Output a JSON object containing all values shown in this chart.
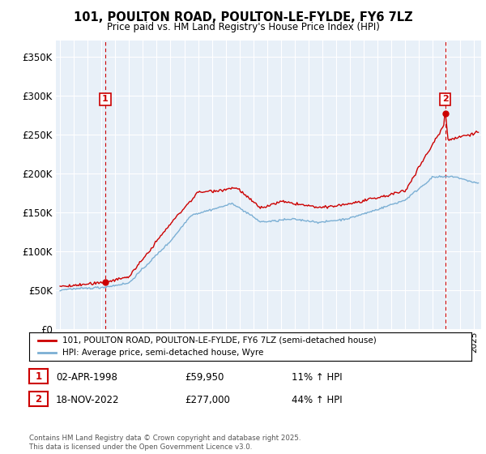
{
  "title": "101, POULTON ROAD, POULTON-LE-FYLDE, FY6 7LZ",
  "subtitle": "Price paid vs. HM Land Registry's House Price Index (HPI)",
  "ylabel_ticks": [
    "£0",
    "£50K",
    "£100K",
    "£150K",
    "£200K",
    "£250K",
    "£300K",
    "£350K"
  ],
  "ytick_values": [
    0,
    50000,
    100000,
    150000,
    200000,
    250000,
    300000,
    350000
  ],
  "ylim": [
    0,
    370000
  ],
  "xlim_start": 1994.7,
  "xlim_end": 2025.5,
  "purchase1_x": 1998.27,
  "purchase1_price": 59950,
  "purchase1_label": "1",
  "purchase2_x": 2022.9,
  "purchase2_price": 277000,
  "purchase2_label": "2",
  "red_color": "#cc0000",
  "blue_color": "#7bafd4",
  "chart_bg": "#e8f0f8",
  "legend_red_label": "101, POULTON ROAD, POULTON-LE-FYLDE, FY6 7LZ (semi-detached house)",
  "legend_blue_label": "HPI: Average price, semi-detached house, Wyre",
  "annotation1_date": "02-APR-1998",
  "annotation1_price": "£59,950",
  "annotation1_hpi": "11% ↑ HPI",
  "annotation2_date": "18-NOV-2022",
  "annotation2_price": "£277,000",
  "annotation2_hpi": "44% ↑ HPI",
  "footer": "Contains HM Land Registry data © Crown copyright and database right 2025.\nThis data is licensed under the Open Government Licence v3.0.",
  "background_color": "#ffffff",
  "grid_color": "#ffffff"
}
